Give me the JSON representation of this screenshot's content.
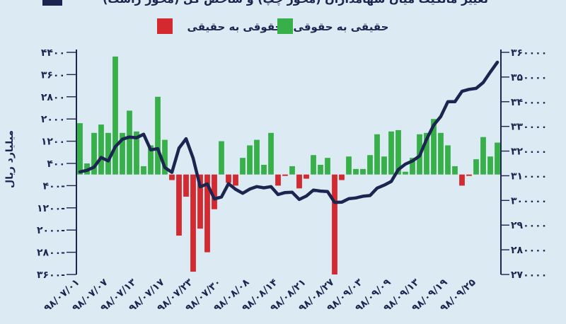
{
  "chart_data": {
    "type": "bar+line",
    "title": "تغییر مالکیت میان سهامداران (محور چپ) و شاخص کل (محور راست)",
    "ylabel_left": "میلیارد ریال",
    "legend": [
      {
        "label": "حقوقی به حقیقی",
        "color": "#d42a2f"
      },
      {
        "label": "حقیقی به حقوقی",
        "color": "#37b04a"
      }
    ],
    "colors": {
      "positive": "#37b04a",
      "negative": "#d42a2f",
      "line": "#1b2550",
      "background": "#dcebf3"
    },
    "left_axis": {
      "min": -3600,
      "max": 4400,
      "ticks": [
        "4400",
        "3600",
        "2800",
        "2000",
        "1200",
        "400",
        "-400",
        "-1200",
        "-2000",
        "-2800",
        "-3600"
      ]
    },
    "right_axis": {
      "min": 270000,
      "max": 360000,
      "ticks": [
        "360000",
        "350000",
        "340000",
        "330000",
        "320000",
        "310000",
        "300000",
        "290000",
        "280000",
        "270000"
      ]
    },
    "x_tick_labels": [
      "98/07/01",
      "98/07/07",
      "98/07/13",
      "98/07/17",
      "98/07/23",
      "98/07/30",
      "98/08/08",
      "98/08/14",
      "98/08/21",
      "98/08/27",
      "98/09/03",
      "98/09/09",
      "98/09/13",
      "98/09/19",
      "98/09/25"
    ],
    "x_tick_indices": [
      0,
      4,
      8,
      12,
      16,
      20,
      24,
      28,
      32,
      36,
      40,
      44,
      48,
      52,
      56
    ],
    "bars": [
      1850,
      400,
      1500,
      1800,
      1500,
      4250,
      1500,
      2300,
      1550,
      300,
      1050,
      2800,
      1250,
      -200,
      -2200,
      -800,
      -3500,
      -1950,
      -2800,
      -1250,
      1200,
      -300,
      -400,
      600,
      1050,
      1250,
      350,
      1500,
      -400,
      -50,
      300,
      -500,
      -150,
      700,
      350,
      600,
      -3600,
      -200,
      650,
      200,
      200,
      700,
      1450,
      650,
      1550,
      1600,
      100,
      600,
      1450,
      1500,
      2000,
      1500,
      1050,
      300,
      -400,
      -50,
      550,
      1350,
      650,
      1150
    ],
    "index_series": [
      311600,
      312200,
      313500,
      317400,
      316000,
      321800,
      324800,
      325700,
      325400,
      326800,
      320500,
      321000,
      313300,
      311400,
      321200,
      325000,
      317100,
      305500,
      306700,
      300600,
      301400,
      306800,
      304500,
      302900,
      304600,
      305600,
      305100,
      305600,
      302400,
      303200,
      303300,
      300400,
      301800,
      304200,
      303800,
      303600,
      299200,
      299300,
      300700,
      301000,
      301700,
      302000,
      305000,
      306200,
      307700,
      312500,
      314700,
      316000,
      318000,
      324800,
      330500,
      334000,
      340000,
      340000,
      344200,
      345000,
      345400,
      347800,
      352000,
      356000
    ]
  }
}
